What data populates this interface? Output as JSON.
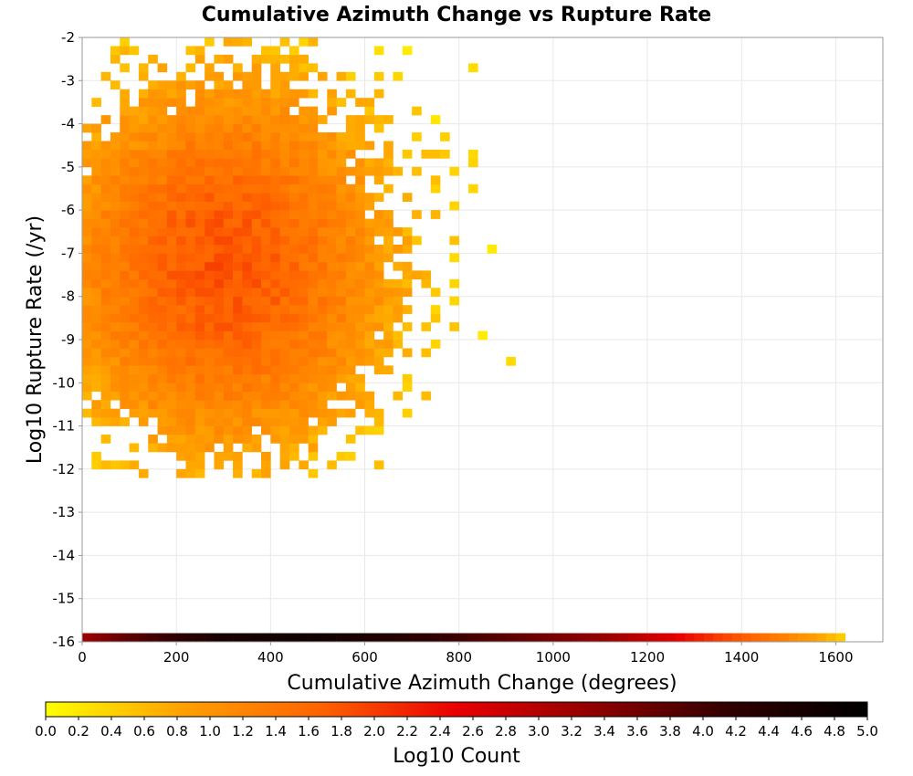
{
  "chart_data": {
    "type": "heatmap",
    "title": "Cumulative Azimuth Change vs Rupture Rate",
    "xlabel": "Cumulative Azimuth Change (degrees)",
    "ylabel": "Log10 Rupture Rate (/yr)",
    "xlim": [
      0,
      1700
    ],
    "ylim": [
      -16,
      -2
    ],
    "xticks": [
      0,
      200,
      400,
      600,
      800,
      1000,
      1200,
      1400,
      1600
    ],
    "yticks": [
      -2,
      -3,
      -4,
      -5,
      -6,
      -7,
      -8,
      -9,
      -10,
      -11,
      -12,
      -13,
      -14,
      -15,
      -16
    ],
    "grid": true,
    "bin_width_x": 20,
    "bin_height_y": 0.2,
    "main_cluster": {
      "x_range": [
        0,
        1000
      ],
      "y_range": [
        -12.2,
        -2.0
      ],
      "peak_x": 300,
      "peak_y": -6.0,
      "peak_log10_count": 1.8
    },
    "bottom_row": {
      "y": -15.9,
      "x_range": [
        0,
        1620
      ],
      "log10_count_profile": [
        {
          "x": 0,
          "v": 3.2
        },
        {
          "x": 100,
          "v": 3.8
        },
        {
          "x": 300,
          "v": 4.6
        },
        {
          "x": 500,
          "v": 4.7
        },
        {
          "x": 700,
          "v": 4.3
        },
        {
          "x": 900,
          "v": 3.8
        },
        {
          "x": 1100,
          "v": 3.3
        },
        {
          "x": 1250,
          "v": 2.6
        },
        {
          "x": 1350,
          "v": 2.0
        },
        {
          "x": 1450,
          "v": 1.5
        },
        {
          "x": 1550,
          "v": 0.9
        },
        {
          "x": 1620,
          "v": 0.4
        }
      ]
    },
    "colorbar": {
      "label": "Log10 Count",
      "min": 0.0,
      "max": 5.0,
      "ticks": [
        "0.0",
        "0.2",
        "0.4",
        "0.6",
        "0.8",
        "1.0",
        "1.2",
        "1.4",
        "1.6",
        "1.8",
        "2.0",
        "2.2",
        "2.4",
        "2.6",
        "2.8",
        "3.0",
        "3.2",
        "3.4",
        "3.6",
        "3.8",
        "4.0",
        "4.2",
        "4.4",
        "4.6",
        "4.8",
        "5.0"
      ],
      "colors": [
        "#ffff00",
        "#ffa000",
        "#ff6400",
        "#e80000",
        "#900000",
        "#300000",
        "#000000"
      ]
    }
  }
}
